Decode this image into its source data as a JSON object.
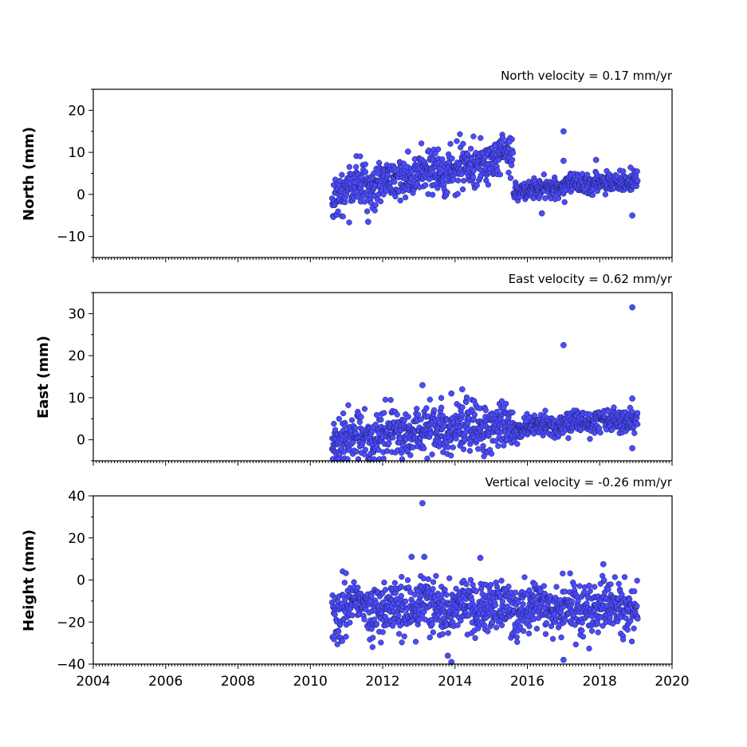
{
  "chart_data": [
    {
      "type": "scatter",
      "title": "North velocity = 0.17 mm/yr",
      "ylabel": "North (mm)",
      "xlim": [
        2004,
        2020
      ],
      "ylim": [
        -15,
        25
      ],
      "yticks": [
        -10,
        0,
        10,
        20
      ],
      "y_tick_labels": [
        "−10",
        "0",
        "10",
        "20"
      ],
      "x_tick_labels_shown": false,
      "marker_color": "#4b4bff",
      "segments": [
        {
          "x_start": 2010.6,
          "x_end": 2015.6,
          "y_start": 0.5,
          "y_end": 9.0,
          "spread": 2.6
        },
        {
          "x_start": 2015.62,
          "x_end": 2019.05,
          "y_start": 1.0,
          "y_end": 3.5,
          "spread": 1.2
        }
      ],
      "outliers": [
        {
          "x": 2017.0,
          "y": 15.0
        },
        {
          "x": 2017.0,
          "y": 8.0
        },
        {
          "x": 2018.9,
          "y": -5.0
        },
        {
          "x": 2011.6,
          "y": -6.5
        },
        {
          "x": 2016.4,
          "y": -4.5
        },
        {
          "x": 2012.7,
          "y": 10.2
        },
        {
          "x": 2017.9,
          "y": 8.2
        },
        {
          "x": 2015.5,
          "y": 12.5
        }
      ]
    },
    {
      "type": "scatter",
      "title": "East velocity = 0.62 mm/yr",
      "ylabel": "East (mm)",
      "xlim": [
        2004,
        2020
      ],
      "ylim": [
        -5,
        35
      ],
      "yticks": [
        0,
        10,
        20,
        30
      ],
      "y_tick_labels": [
        "0",
        "10",
        "20",
        "30"
      ],
      "x_tick_labels_shown": false,
      "marker_color": "#4b4bff",
      "segments": [
        {
          "x_start": 2010.6,
          "x_end": 2015.6,
          "y_start": 0.0,
          "y_end": 4.0,
          "spread": 2.8
        },
        {
          "x_start": 2015.62,
          "x_end": 2019.05,
          "y_start": 3.0,
          "y_end": 5.0,
          "spread": 1.3
        }
      ],
      "outliers": [
        {
          "x": 2018.9,
          "y": 31.5
        },
        {
          "x": 2017.0,
          "y": 22.5
        },
        {
          "x": 2013.1,
          "y": 13.0
        },
        {
          "x": 2014.2,
          "y": 12.0
        },
        {
          "x": 2018.9,
          "y": 9.8
        },
        {
          "x": 2018.9,
          "y": -2.0
        },
        {
          "x": 2013.9,
          "y": 11.0
        }
      ]
    },
    {
      "type": "scatter",
      "title": "Vertical velocity = -0.26 mm/yr",
      "ylabel": "Height (mm)",
      "xlim": [
        2004,
        2020
      ],
      "ylim": [
        -40,
        40
      ],
      "yticks": [
        -40,
        -20,
        0,
        20,
        40
      ],
      "y_tick_labels": [
        "−40",
        "−20",
        "0",
        "20",
        "40"
      ],
      "xticks": [
        2004,
        2006,
        2008,
        2010,
        2012,
        2014,
        2016,
        2018,
        2020
      ],
      "x_tick_labels": [
        "2004",
        "2006",
        "2008",
        "2010",
        "2012",
        "2014",
        "2016",
        "2018",
        "2020"
      ],
      "x_tick_labels_shown": true,
      "marker_color": "#4b4bff",
      "segments": [
        {
          "x_start": 2010.6,
          "x_end": 2019.05,
          "y_start": -13.0,
          "y_end": -13.0,
          "spread": 6.0
        }
      ],
      "outliers": [
        {
          "x": 2013.1,
          "y": 36.5
        },
        {
          "x": 2012.8,
          "y": 11.0
        },
        {
          "x": 2013.15,
          "y": 11.0
        },
        {
          "x": 2014.7,
          "y": 10.5
        },
        {
          "x": 2013.9,
          "y": -39.0
        },
        {
          "x": 2017.0,
          "y": -38.0
        },
        {
          "x": 2018.1,
          "y": 7.5
        },
        {
          "x": 2013.8,
          "y": -36.0
        }
      ]
    }
  ]
}
